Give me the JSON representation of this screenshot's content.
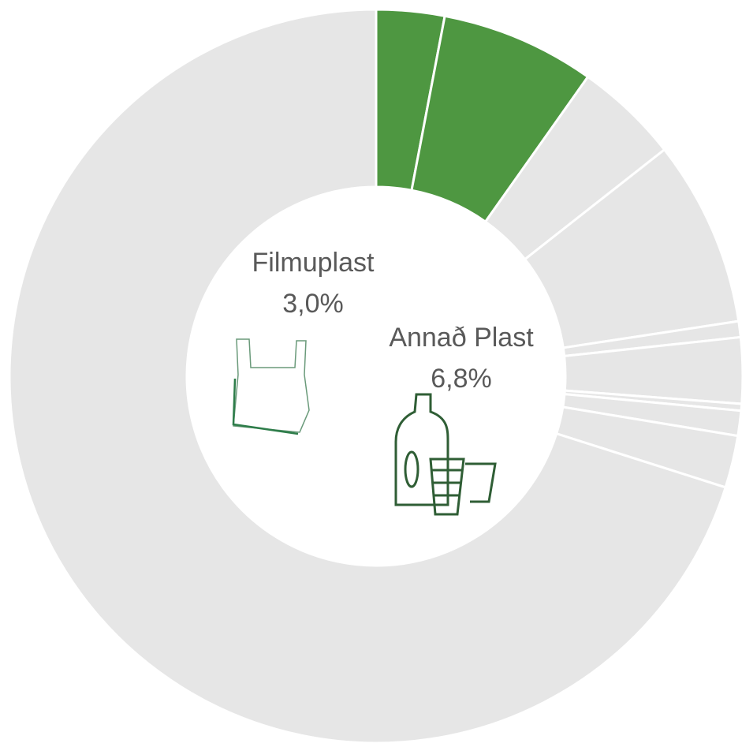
{
  "chart_data": {
    "type": "donut",
    "categories": [
      "Filmuplast",
      "Annað Plast",
      null,
      null,
      null,
      null,
      null,
      null,
      null,
      null
    ],
    "values": [
      3.0,
      6.8,
      4.6,
      8.2,
      0.7,
      2.9,
      0.3,
      1.1,
      2.3,
      70.1
    ],
    "value_labels": [
      "3,0%",
      "6,8%",
      null,
      null,
      null,
      null,
      null,
      null,
      null,
      null
    ],
    "colors": [
      "#4e9741",
      "#4e9741",
      "#e6e6e6",
      "#e6e6e6",
      "#e6e6e6",
      "#e6e6e6",
      "#e6e6e6",
      "#e6e6e6",
      "#e6e6e6",
      "#e6e6e6"
    ]
  }
}
